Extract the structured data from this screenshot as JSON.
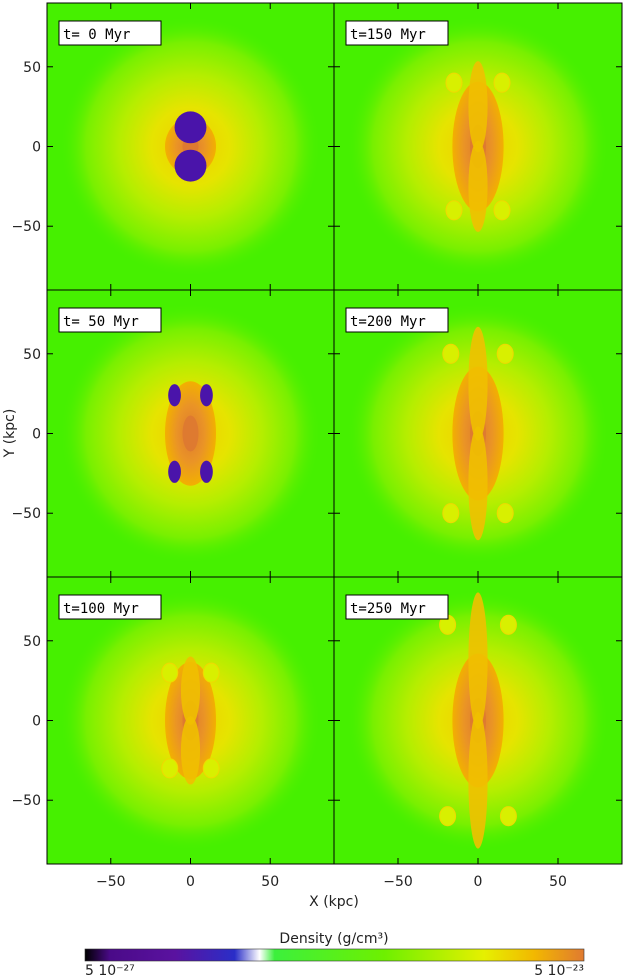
{
  "chart_data": {
    "type": "heatmap",
    "xlabel": "X (kpc)",
    "ylabel": "Y (kpc)",
    "xlim": [
      -90,
      90
    ],
    "ylim": [
      -90,
      90
    ],
    "x_ticks": [
      -50,
      0,
      50
    ],
    "y_ticks": [
      50,
      0,
      -50
    ],
    "x_tick_labels": [
      "−50",
      "0",
      "50"
    ],
    "y_tick_labels": [
      "50",
      "0",
      "−50"
    ],
    "layout": "3 rows x 2 columns, time increases down the left column then down the right column",
    "panels": [
      {
        "label": "t=   0 Myr",
        "time_myr": 0
      },
      {
        "label": "t=150 Myr",
        "time_myr": 150
      },
      {
        "label": "t= 50 Myr",
        "time_myr": 50
      },
      {
        "label": "t=200 Myr",
        "time_myr": 200
      },
      {
        "label": "t=100 Myr",
        "time_myr": 100
      },
      {
        "label": "t=250 Myr",
        "time_myr": 250
      }
    ],
    "colorbar": {
      "title": "Density (g/cm³)",
      "min_label": "5 10⁻²⁷",
      "max_label": "5 10⁻²³",
      "min_value": 5e-27,
      "max_value": 5e-23,
      "scale": "log",
      "colors": [
        "#000000",
        "#5a12a0",
        "#3a16b8",
        "#2a2ec8",
        "#ffffff",
        "#3cf03c",
        "#6ef000",
        "#d8f000",
        "#f2b800",
        "#e88a28"
      ]
    },
    "colors": {
      "background_field": "#46f000",
      "halo_mid": "#a8ee00",
      "halo_inner": "#eec800",
      "core": "#e89028",
      "core_deep": "#de7a30",
      "bubble": "#4a14aa",
      "filament": "#d8f000"
    }
  }
}
